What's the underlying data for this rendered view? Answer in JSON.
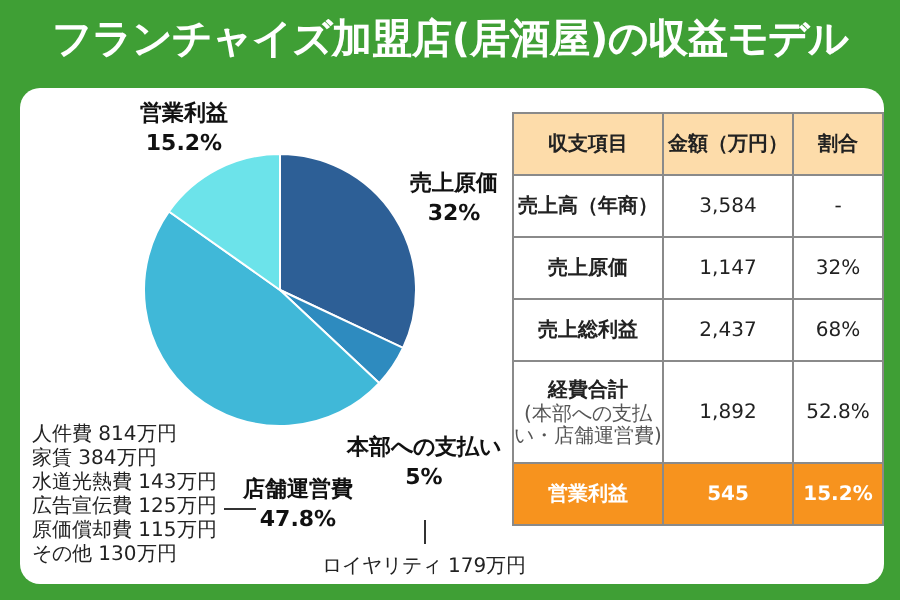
{
  "chart_data": [
    {
      "type": "pie",
      "title": "フランチャイズ加盟店(居酒屋)の収益モデル",
      "categories": [
        "売上原価",
        "本部への支払い",
        "店舗運営費",
        "営業利益"
      ],
      "values": [
        32,
        5,
        47.8,
        15.2
      ],
      "value_labels": [
        "32%",
        "5%",
        "47.8%",
        "15.2%"
      ],
      "colors": [
        "#2d5f96",
        "#2e8bbf",
        "#40b8d8",
        "#6ce3ea"
      ],
      "legend": false,
      "annotations": [
        "人件費 814万円",
        "家賃 384万円",
        "水道光熱費 143万円",
        "広告宣伝費 125万円",
        "原価償却費 115万円",
        "その他 130万円",
        "ロイヤリティ 179万円"
      ]
    },
    {
      "type": "other",
      "annotations": [
        "収支項目",
        "金額（万円）",
        "割合",
        "売上高（年商）",
        "3,584",
        "-",
        "売上原価",
        "1,147",
        "32%",
        "売上総利益",
        "2,437",
        "68%",
        "経費合計",
        "(本部への支払い・店舗運営費)",
        "1,892",
        "52.8%",
        "営業利益",
        "545",
        "15.2%"
      ]
    }
  ]
}
